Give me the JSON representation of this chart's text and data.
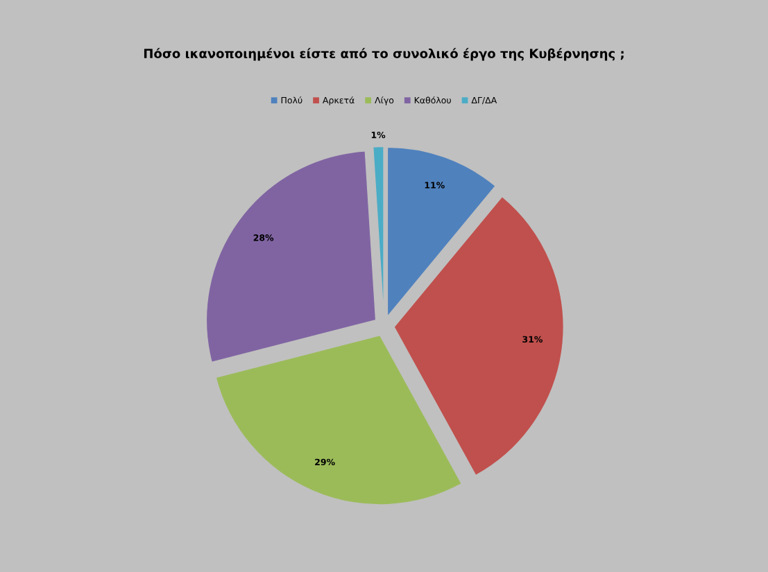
{
  "chart_data": {
    "type": "pie",
    "title": "Πόσο ικανοποιημένοι είστε από το συνολικό έργο της Κυβέρνησης ;",
    "categories": [
      "Πολύ",
      "Αρκετά",
      "Λίγο",
      "Καθόλου",
      "ΔΓ/ΔΑ"
    ],
    "values": [
      11,
      31,
      29,
      28,
      1
    ],
    "value_labels": [
      "11%",
      "31%",
      "29%",
      "28%",
      "1%"
    ],
    "colors": [
      "#4f81bd",
      "#c0504d",
      "#9bbb59",
      "#8064a2",
      "#4bacc6"
    ],
    "legend": "top"
  }
}
